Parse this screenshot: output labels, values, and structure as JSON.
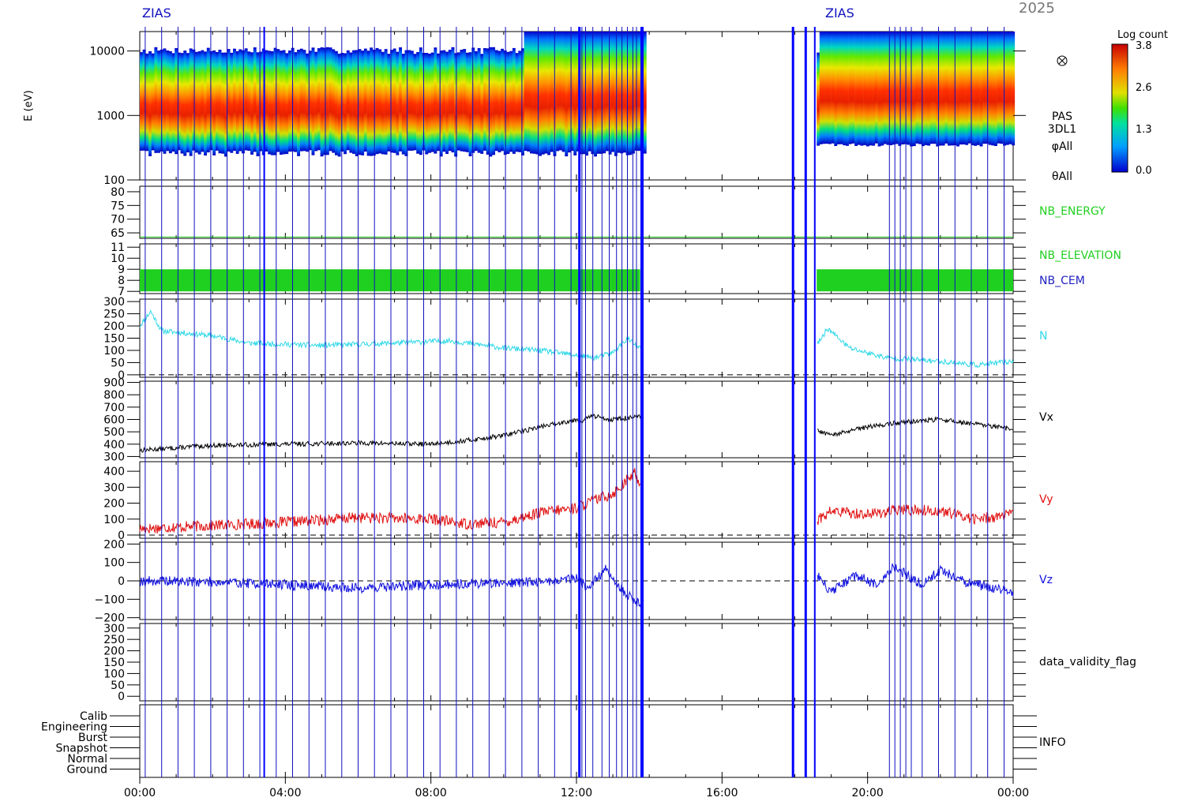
{
  "header": {
    "year_text": "2025",
    "marker_text": "ZIAS"
  },
  "colorbar": {
    "title": "Log count",
    "ticks": [
      "3.8",
      "2.6",
      "1.3",
      "0.0"
    ]
  },
  "x_axis": {
    "ticks": [
      "00:00",
      "04:00",
      "08:00",
      "12:00",
      "16:00",
      "20:00",
      "00:00"
    ]
  },
  "colors": {
    "frame": "#000000",
    "event_line": "#1010c0",
    "nb_green": "#20d020",
    "density": "#30d8e8",
    "vx": "#000000",
    "vy": "#e01010",
    "vz": "#1010e0",
    "nb_cem": "#2020c0"
  },
  "chart_data": [
    {
      "type": "heatmap",
      "ylabel": "E (eV)",
      "yscale": "log",
      "ylim": [
        100,
        20000
      ],
      "yticks": [
        "10000",
        "1000",
        "100"
      ],
      "right_labels": [
        "PAS",
        "3DL1",
        "φAll",
        "θAll"
      ],
      "colorbar_range": [
        0.0,
        3.8
      ],
      "peak_energy_ev": [
        {
          "hour": 0,
          "ev": 1000
        },
        {
          "hour": 6,
          "ev": 1000
        },
        {
          "hour": 10.5,
          "ev": 1400
        },
        {
          "hour": 13.7,
          "ev": 2500
        },
        {
          "hour": 18.6,
          "ev": 1800
        },
        {
          "hour": 24,
          "ev": 1800
        }
      ],
      "data_gaps_hours": [
        [
          13.85,
          18.6
        ]
      ]
    },
    {
      "type": "line",
      "label": "NB_ENERGY",
      "yticks": [
        "80",
        "75",
        "70",
        "65"
      ],
      "ylim": [
        63,
        82
      ],
      "value": 63.5
    },
    {
      "type": "area",
      "labels": [
        "NB_ELEVATION",
        "NB_CEM"
      ],
      "yticks": [
        "11",
        "10",
        "9",
        "8",
        "7"
      ],
      "ylim": [
        6.8,
        11.3
      ],
      "range": [
        7,
        9
      ]
    },
    {
      "type": "line",
      "label": "N",
      "yticks": [
        "300",
        "250",
        "200",
        "150",
        "100",
        "50",
        "0"
      ],
      "ylim": [
        -10,
        310
      ],
      "points": [
        [
          0,
          200
        ],
        [
          0.3,
          260
        ],
        [
          0.6,
          180
        ],
        [
          2,
          160
        ],
        [
          3,
          130
        ],
        [
          5,
          120
        ],
        [
          7,
          130
        ],
        [
          8.5,
          140
        ],
        [
          10,
          110
        ],
        [
          11,
          100
        ],
        [
          12,
          80
        ],
        [
          12.5,
          70
        ],
        [
          13,
          90
        ],
        [
          13.4,
          150
        ],
        [
          13.7,
          110
        ],
        [
          18.6,
          120
        ],
        [
          18.9,
          190
        ],
        [
          19.5,
          110
        ],
        [
          20.5,
          70
        ],
        [
          22,
          55
        ],
        [
          23,
          40
        ],
        [
          24,
          55
        ]
      ]
    },
    {
      "type": "line",
      "label": "Vx",
      "yticks": [
        "900",
        "800",
        "700",
        "600",
        "500",
        "400",
        "300"
      ],
      "ylim": [
        290,
        910
      ],
      "points": [
        [
          0,
          350
        ],
        [
          2,
          390
        ],
        [
          4,
          400
        ],
        [
          6,
          410
        ],
        [
          8,
          400
        ],
        [
          9,
          430
        ],
        [
          10,
          470
        ],
        [
          11,
          540
        ],
        [
          12,
          600
        ],
        [
          12.2,
          590
        ],
        [
          12.4,
          630
        ],
        [
          13,
          600
        ],
        [
          13.7,
          620
        ],
        [
          18.6,
          510
        ],
        [
          19,
          470
        ],
        [
          20,
          540
        ],
        [
          21,
          580
        ],
        [
          22,
          600
        ],
        [
          23,
          560
        ],
        [
          24,
          520
        ]
      ]
    },
    {
      "type": "line",
      "label": "Vy",
      "yticks": [
        "400",
        "300",
        "200",
        "100",
        "0"
      ],
      "ylim": [
        -20,
        460
      ],
      "points": [
        [
          0,
          40
        ],
        [
          2,
          60
        ],
        [
          4,
          80
        ],
        [
          6,
          110
        ],
        [
          8,
          100
        ],
        [
          9,
          70
        ],
        [
          10,
          80
        ],
        [
          11,
          140
        ],
        [
          12,
          170
        ],
        [
          12.5,
          220
        ],
        [
          13,
          260
        ],
        [
          13.6,
          390
        ],
        [
          13.8,
          300
        ],
        [
          18.6,
          90
        ],
        [
          19,
          150
        ],
        [
          20,
          130
        ],
        [
          21,
          160
        ],
        [
          22,
          150
        ],
        [
          23,
          100
        ],
        [
          24,
          130
        ]
      ]
    },
    {
      "type": "line",
      "label": "Vz",
      "yticks": [
        "200",
        "100",
        "0",
        "−100",
        "−200"
      ],
      "ylim": [
        -210,
        210
      ],
      "points": [
        [
          0,
          0
        ],
        [
          2,
          -5
        ],
        [
          4,
          -20
        ],
        [
          6,
          -40
        ],
        [
          8,
          -20
        ],
        [
          10,
          -10
        ],
        [
          11.5,
          0
        ],
        [
          12,
          20
        ],
        [
          12.3,
          -40
        ],
        [
          12.8,
          60
        ],
        [
          13.3,
          -60
        ],
        [
          13.7,
          -120
        ],
        [
          18.6,
          30
        ],
        [
          19,
          -60
        ],
        [
          19.7,
          30
        ],
        [
          20.3,
          -30
        ],
        [
          20.7,
          80
        ],
        [
          21.5,
          -20
        ],
        [
          22,
          60
        ],
        [
          22.7,
          -10
        ],
        [
          23.5,
          -40
        ],
        [
          24,
          -60
        ]
      ]
    },
    {
      "type": "line",
      "label": "data_validity_flag",
      "yticks": [
        "300",
        "250",
        "200",
        "150",
        "100",
        "50",
        "0"
      ],
      "ylim": [
        -20,
        320
      ]
    },
    {
      "type": "table",
      "label": "INFO",
      "categories": [
        "Calib",
        "Engineering",
        "Burst",
        "Snapshot",
        "Normal",
        "Ground"
      ]
    }
  ]
}
